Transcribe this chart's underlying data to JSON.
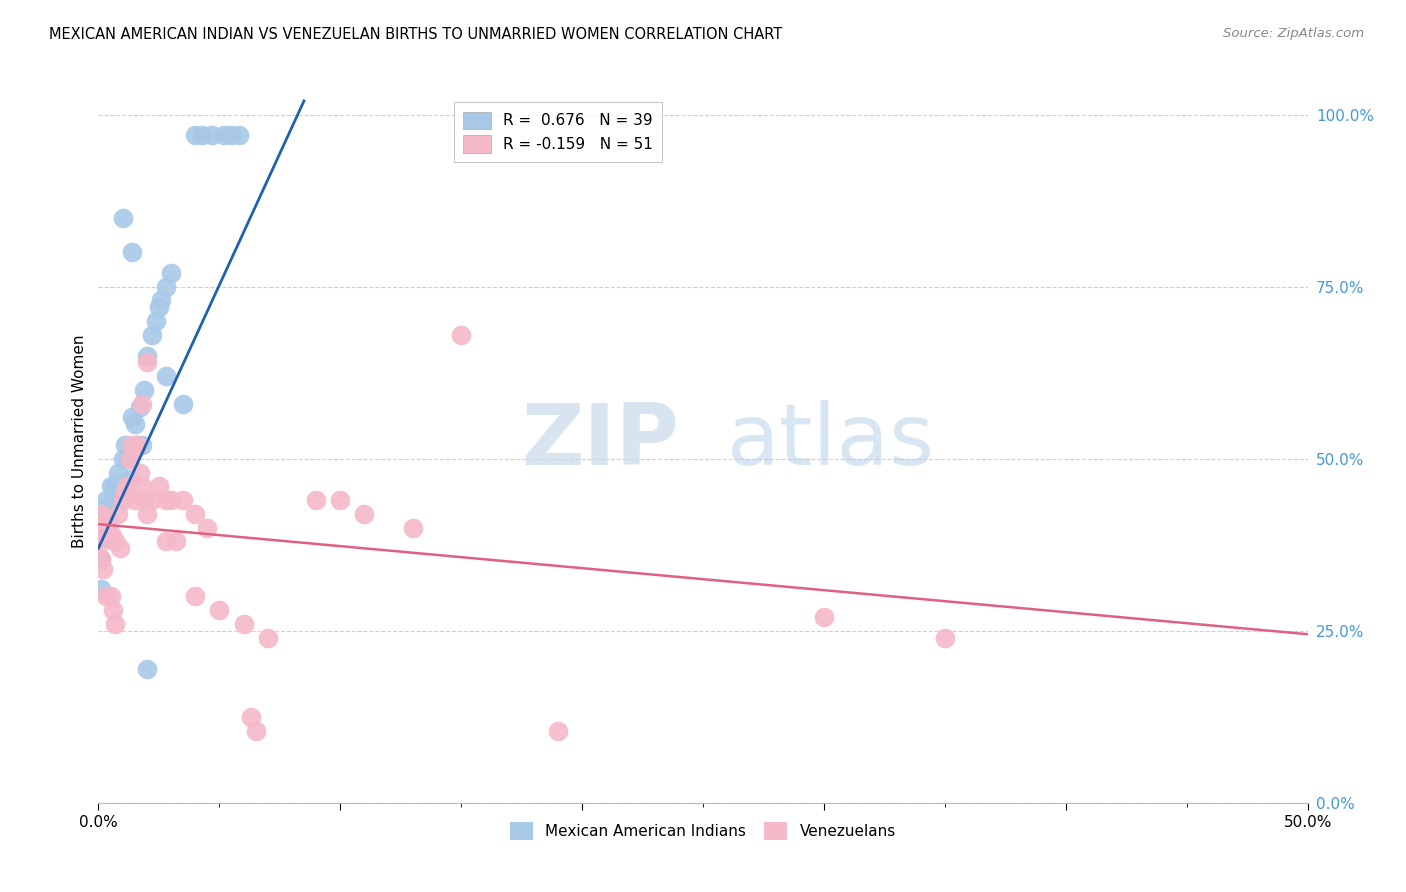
{
  "title": "MEXICAN AMERICAN INDIAN VS VENEZUELAN BIRTHS TO UNMARRIED WOMEN CORRELATION CHART",
  "source": "Source: ZipAtlas.com",
  "ylabel": "Births to Unmarried Women",
  "xlabel_blue": "Mexican American Indians",
  "xlabel_pink": "Venezuelans",
  "xmin": 0.0,
  "xmax": 0.5,
  "ymin": 0.0,
  "ymax": 1.05,
  "watermark_ZIP": "ZIP",
  "watermark_atlas": "atlas",
  "legend_blue_R": "R =  0.676",
  "legend_blue_N": "N = 39",
  "legend_pink_R": "R = -0.159",
  "legend_pink_N": "N = 51",
  "blue_color": "#a8c8e8",
  "pink_color": "#f5b8c8",
  "blue_line_color": "#2060b0",
  "pink_line_color": "#e06080",
  "blue_scatter": [
    [
      0.001,
      0.385
    ],
    [
      0.002,
      0.42
    ],
    [
      0.003,
      0.44
    ],
    [
      0.004,
      0.43
    ],
    [
      0.005,
      0.46
    ],
    [
      0.006,
      0.455
    ],
    [
      0.007,
      0.46
    ],
    [
      0.008,
      0.48
    ],
    [
      0.009,
      0.46
    ],
    [
      0.01,
      0.5
    ],
    [
      0.011,
      0.52
    ],
    [
      0.012,
      0.5
    ],
    [
      0.013,
      0.47
    ],
    [
      0.014,
      0.56
    ],
    [
      0.015,
      0.55
    ],
    [
      0.016,
      0.52
    ],
    [
      0.017,
      0.575
    ],
    [
      0.018,
      0.52
    ],
    [
      0.019,
      0.6
    ],
    [
      0.02,
      0.65
    ],
    [
      0.022,
      0.68
    ],
    [
      0.024,
      0.7
    ],
    [
      0.025,
      0.72
    ],
    [
      0.026,
      0.73
    ],
    [
      0.028,
      0.75
    ],
    [
      0.03,
      0.77
    ],
    [
      0.001,
      0.355
    ],
    [
      0.001,
      0.31
    ],
    [
      0.01,
      0.85
    ],
    [
      0.014,
      0.8
    ],
    [
      0.04,
      0.97
    ],
    [
      0.043,
      0.97
    ],
    [
      0.047,
      0.97
    ],
    [
      0.052,
      0.97
    ],
    [
      0.055,
      0.97
    ],
    [
      0.058,
      0.97
    ],
    [
      0.035,
      0.58
    ],
    [
      0.028,
      0.62
    ],
    [
      0.02,
      0.195
    ]
  ],
  "pink_scatter": [
    [
      0.001,
      0.42
    ],
    [
      0.002,
      0.38
    ],
    [
      0.003,
      0.4
    ],
    [
      0.004,
      0.41
    ],
    [
      0.005,
      0.39
    ],
    [
      0.006,
      0.385
    ],
    [
      0.007,
      0.38
    ],
    [
      0.008,
      0.42
    ],
    [
      0.009,
      0.37
    ],
    [
      0.01,
      0.44
    ],
    [
      0.011,
      0.45
    ],
    [
      0.012,
      0.46
    ],
    [
      0.013,
      0.5
    ],
    [
      0.014,
      0.52
    ],
    [
      0.015,
      0.44
    ],
    [
      0.016,
      0.52
    ],
    [
      0.017,
      0.48
    ],
    [
      0.018,
      0.46
    ],
    [
      0.019,
      0.44
    ],
    [
      0.02,
      0.42
    ],
    [
      0.022,
      0.44
    ],
    [
      0.025,
      0.46
    ],
    [
      0.028,
      0.44
    ],
    [
      0.001,
      0.355
    ],
    [
      0.002,
      0.34
    ],
    [
      0.003,
      0.3
    ],
    [
      0.005,
      0.3
    ],
    [
      0.006,
      0.28
    ],
    [
      0.007,
      0.26
    ],
    [
      0.02,
      0.64
    ],
    [
      0.018,
      0.58
    ],
    [
      0.03,
      0.44
    ],
    [
      0.035,
      0.44
    ],
    [
      0.04,
      0.42
    ],
    [
      0.045,
      0.4
    ],
    [
      0.028,
      0.38
    ],
    [
      0.032,
      0.38
    ],
    [
      0.04,
      0.3
    ],
    [
      0.05,
      0.28
    ],
    [
      0.06,
      0.26
    ],
    [
      0.07,
      0.24
    ],
    [
      0.15,
      0.68
    ],
    [
      0.09,
      0.44
    ],
    [
      0.1,
      0.44
    ],
    [
      0.11,
      0.42
    ],
    [
      0.13,
      0.4
    ],
    [
      0.3,
      0.27
    ],
    [
      0.35,
      0.24
    ],
    [
      0.065,
      0.105
    ],
    [
      0.063,
      0.125
    ],
    [
      0.19,
      0.105
    ]
  ],
  "blue_line": {
    "x0": 0.0,
    "y0": 0.37,
    "x1": 0.085,
    "y1": 1.02
  },
  "pink_line": {
    "x0": 0.0,
    "y0": 0.405,
    "x1": 0.5,
    "y1": 0.245
  },
  "ytick_labels": [
    "0.0%",
    "25.0%",
    "50.0%",
    "75.0%",
    "100.0%"
  ],
  "ytick_values": [
    0.0,
    0.25,
    0.5,
    0.75,
    1.0
  ],
  "xtick_major": [
    0.0,
    0.1,
    0.2,
    0.3,
    0.4,
    0.5
  ],
  "xtick_minor": [
    0.05,
    0.15,
    0.25,
    0.35,
    0.45
  ],
  "grid_color": "#d0d0d0",
  "grid_style": "--",
  "bg_color": "#ffffff"
}
